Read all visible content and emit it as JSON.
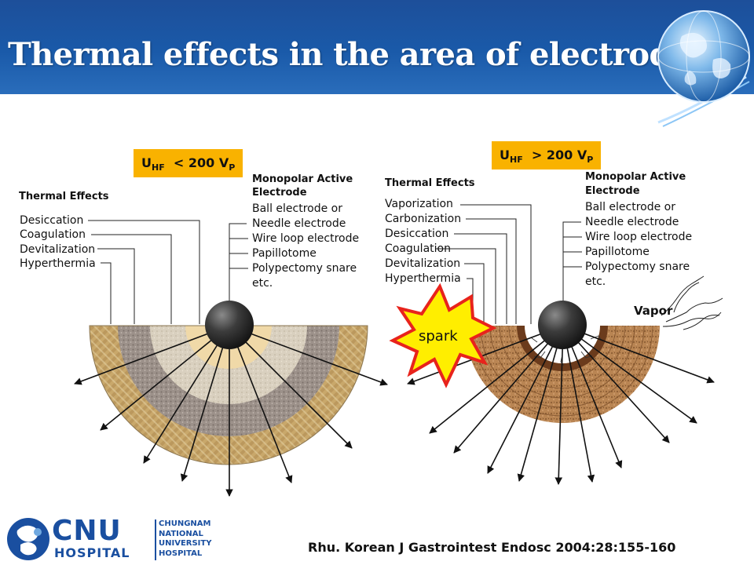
{
  "slide": {
    "title": "Thermal effects in the area of electrode"
  },
  "left": {
    "voltage": {
      "u": "U",
      "sub": "HF",
      "op": "< 200",
      "v": "V",
      "vsub": "P"
    },
    "thermal_heading": "Thermal Effects",
    "thermal_effects": [
      "Desiccation",
      "Coagulation",
      "Devitalization",
      "Hyperthermia"
    ],
    "electrode_heading_line1": "Monopolar Active",
    "electrode_heading_line2": "Electrode",
    "electrodes": [
      "Ball electrode or",
      "Needle electrode",
      "Wire loop electrode",
      "Papillotome",
      "Polypectomy snare",
      "etc."
    ]
  },
  "right": {
    "voltage": {
      "u": "U",
      "sub": "HF",
      "op": "> 200",
      "v": "V",
      "vsub": "P"
    },
    "thermal_heading": "Thermal Effects",
    "thermal_effects": [
      "Vaporization",
      "Carbonization",
      "Desiccation",
      "Coagulation",
      "Devitalization",
      "Hyperthermia"
    ],
    "electrode_heading_line1": "Monopolar Active",
    "electrode_heading_line2": "Electrode",
    "electrodes": [
      "Ball electrode or",
      "Needle electrode",
      "Wire loop electrode",
      "Papillotome",
      "Polypectomy snare",
      "etc."
    ],
    "spark_label": "spark",
    "vapor_label": "Vapor"
  },
  "footer": {
    "logo_main": "CNU",
    "logo_sub": "HOSPITAL",
    "logo_lines": [
      "CHUNGNAM",
      "NATIONAL",
      "UNIVERSITY",
      "HOSPITAL"
    ],
    "citation": "Rhu. Korean J Gastrointest Endosc 2004:28:155-160"
  },
  "colors": {
    "title_bar": "#1a5aa9",
    "voltage_box": "#f9b200",
    "left_zone_outer": "#c8a66a",
    "left_zone_2": "#9e928b",
    "left_zone_3": "#d6cfbf",
    "left_zone_inner": "#f0d9a8",
    "right_zone_outer": "#b07a4a",
    "right_zone_carbon": "#6b3b1c",
    "electrode_ball": "#3a3a3a",
    "spark_fill": "#ffee00",
    "spark_stroke": "#e8231c",
    "logo_blue": "#1a4fa0"
  },
  "icons": [
    "globe-icon",
    "cnu-logo-icon"
  ]
}
